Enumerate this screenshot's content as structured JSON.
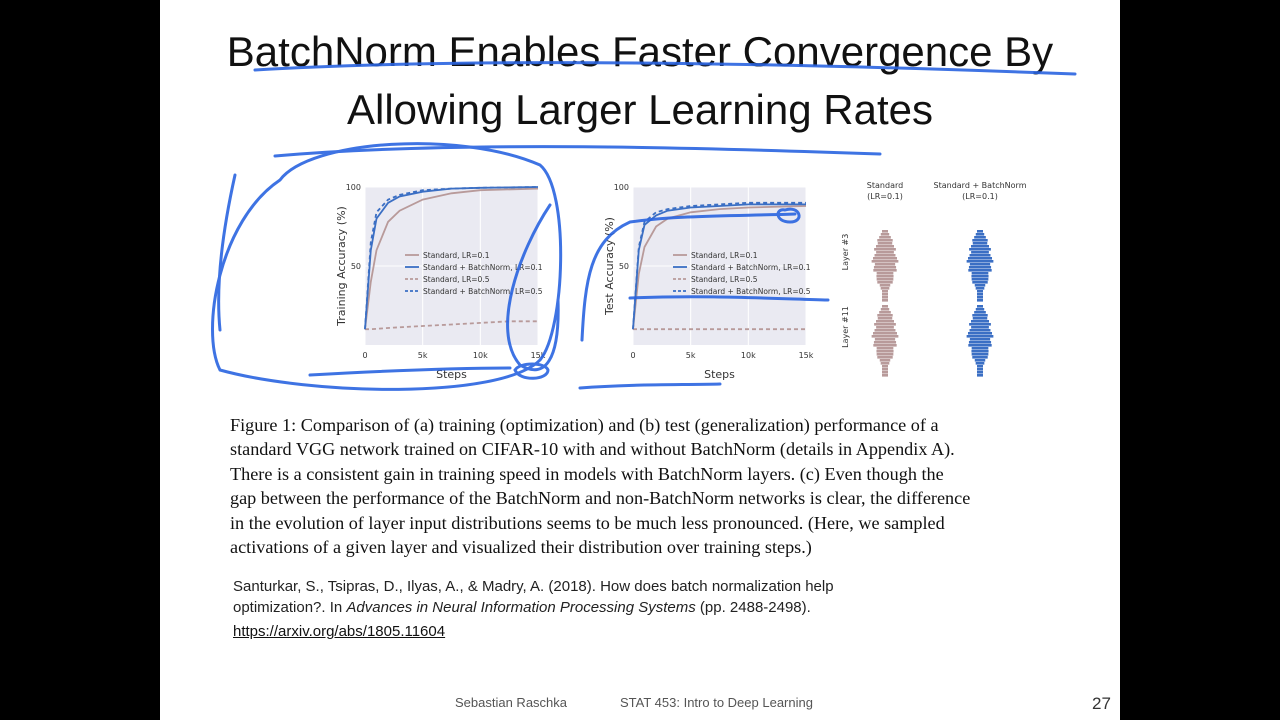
{
  "title": {
    "line1": "BatchNorm Enables Faster Convergence By",
    "line2": "Allowing Larger Learning Rates"
  },
  "colors": {
    "standard": "#b89a9a",
    "batchnorm": "#3b6fc4",
    "ink": "#2a64e0",
    "background": "#000000",
    "slide": "#ffffff"
  },
  "chart_data": [
    {
      "type": "line",
      "ylabel": "Training Accuracy (%)",
      "xlabel": "Steps",
      "xticks": [
        "0",
        "5k",
        "10k",
        "15k"
      ],
      "yticks": [
        "50",
        "100"
      ],
      "xlim": [
        0,
        15000
      ],
      "ylim": [
        0,
        100
      ],
      "grid": true,
      "legend_position": "center",
      "series": [
        {
          "name": "Standard, LR=0.1",
          "color": "#b89a9a",
          "dash": "solid",
          "x": [
            0,
            500,
            1000,
            2000,
            3000,
            5000,
            7500,
            10000,
            15000
          ],
          "y": [
            10,
            40,
            60,
            78,
            85,
            92,
            96,
            98,
            99
          ]
        },
        {
          "name": "Standard + BatchNorm, LR=0.1",
          "color": "#3b6fc4",
          "dash": "solid",
          "x": [
            0,
            500,
            1000,
            2000,
            3000,
            5000,
            7500,
            10000,
            15000
          ],
          "y": [
            10,
            60,
            80,
            90,
            94,
            97,
            99,
            99.5,
            100
          ]
        },
        {
          "name": "Standard, LR=0.5",
          "color": "#b89a9a",
          "dash": "dashed",
          "x": [
            0,
            500,
            2500,
            5000,
            7500,
            10000,
            12500,
            15000
          ],
          "y": [
            10,
            10,
            11,
            12,
            13,
            14,
            15,
            15
          ]
        },
        {
          "name": "Standard + BatchNorm, LR=0.5",
          "color": "#3b6fc4",
          "dash": "dashed",
          "x": [
            0,
            500,
            1000,
            2000,
            3000,
            5000,
            7500,
            10000,
            15000
          ],
          "y": [
            10,
            65,
            84,
            92,
            95,
            98,
            99,
            99.5,
            100
          ]
        }
      ]
    },
    {
      "type": "line",
      "ylabel": "Test Accuracy (%)",
      "xlabel": "Steps",
      "xticks": [
        "0",
        "5k",
        "10k",
        "15k"
      ],
      "yticks": [
        "50",
        "100"
      ],
      "xlim": [
        0,
        15000
      ],
      "ylim": [
        0,
        100
      ],
      "grid": true,
      "legend_position": "center",
      "series": [
        {
          "name": "Standard, LR=0.1",
          "color": "#b89a9a",
          "dash": "solid",
          "x": [
            0,
            500,
            1000,
            2000,
            3000,
            5000,
            7500,
            10000,
            15000
          ],
          "y": [
            10,
            45,
            62,
            75,
            80,
            84,
            86,
            87,
            88
          ]
        },
        {
          "name": "Standard + BatchNorm, LR=0.1",
          "color": "#3b6fc4",
          "dash": "solid",
          "x": [
            0,
            500,
            1000,
            2000,
            3000,
            5000,
            7500,
            10000,
            15000
          ],
          "y": [
            10,
            60,
            76,
            82,
            85,
            87,
            88,
            89,
            89
          ]
        },
        {
          "name": "Standard, LR=0.5",
          "color": "#b89a9a",
          "dash": "dashed",
          "x": [
            0,
            15000
          ],
          "y": [
            10,
            10
          ]
        },
        {
          "name": "Standard + BatchNorm, LR=0.5",
          "color": "#3b6fc4",
          "dash": "dashed",
          "x": [
            0,
            500,
            1000,
            2000,
            3000,
            5000,
            7500,
            10000,
            15000
          ],
          "y": [
            10,
            62,
            78,
            84,
            86,
            88,
            89,
            90,
            90
          ]
        }
      ]
    },
    {
      "type": "histogram-grid",
      "column_labels": [
        {
          "line1": "Standard",
          "line2": "(LR=0.1)"
        },
        {
          "line1": "Standard + BatchNorm",
          "line2": "(LR=0.1)"
        }
      ],
      "row_labels": [
        "Layer #3",
        "Layer #11"
      ]
    }
  ],
  "caption": [
    "Figure 1: Comparison of (a) training (optimization) and (b) test (generalization) performance of a",
    "standard VGG network trained on CIFAR-10 with and without BatchNorm (details in Appendix A).",
    "There is a consistent gain in training speed in models with BatchNorm layers. (c) Even though the",
    "gap between the performance of the BatchNorm and non-BatchNorm networks is clear, the difference",
    "in the evolution of layer input distributions seems to be much less pronounced. (Here, we sampled",
    "activations of a given layer and visualized their distribution over training steps.)"
  ],
  "reference": {
    "line1": "Santurkar, S., Tsipras, D., Ilyas, A., & Madry, A. (2018). How does batch normalization help",
    "line2_prefix": "optimization?. In ",
    "line2_journal": "Advances in Neural Information Processing Systems",
    "line2_suffix": " (pp. 2488-2498).",
    "url": "https://arxiv.org/abs/1805.11604"
  },
  "footer": {
    "author": "Sebastian Raschka",
    "course": "STAT 453: Intro to Deep Learning",
    "page_number": "27"
  }
}
